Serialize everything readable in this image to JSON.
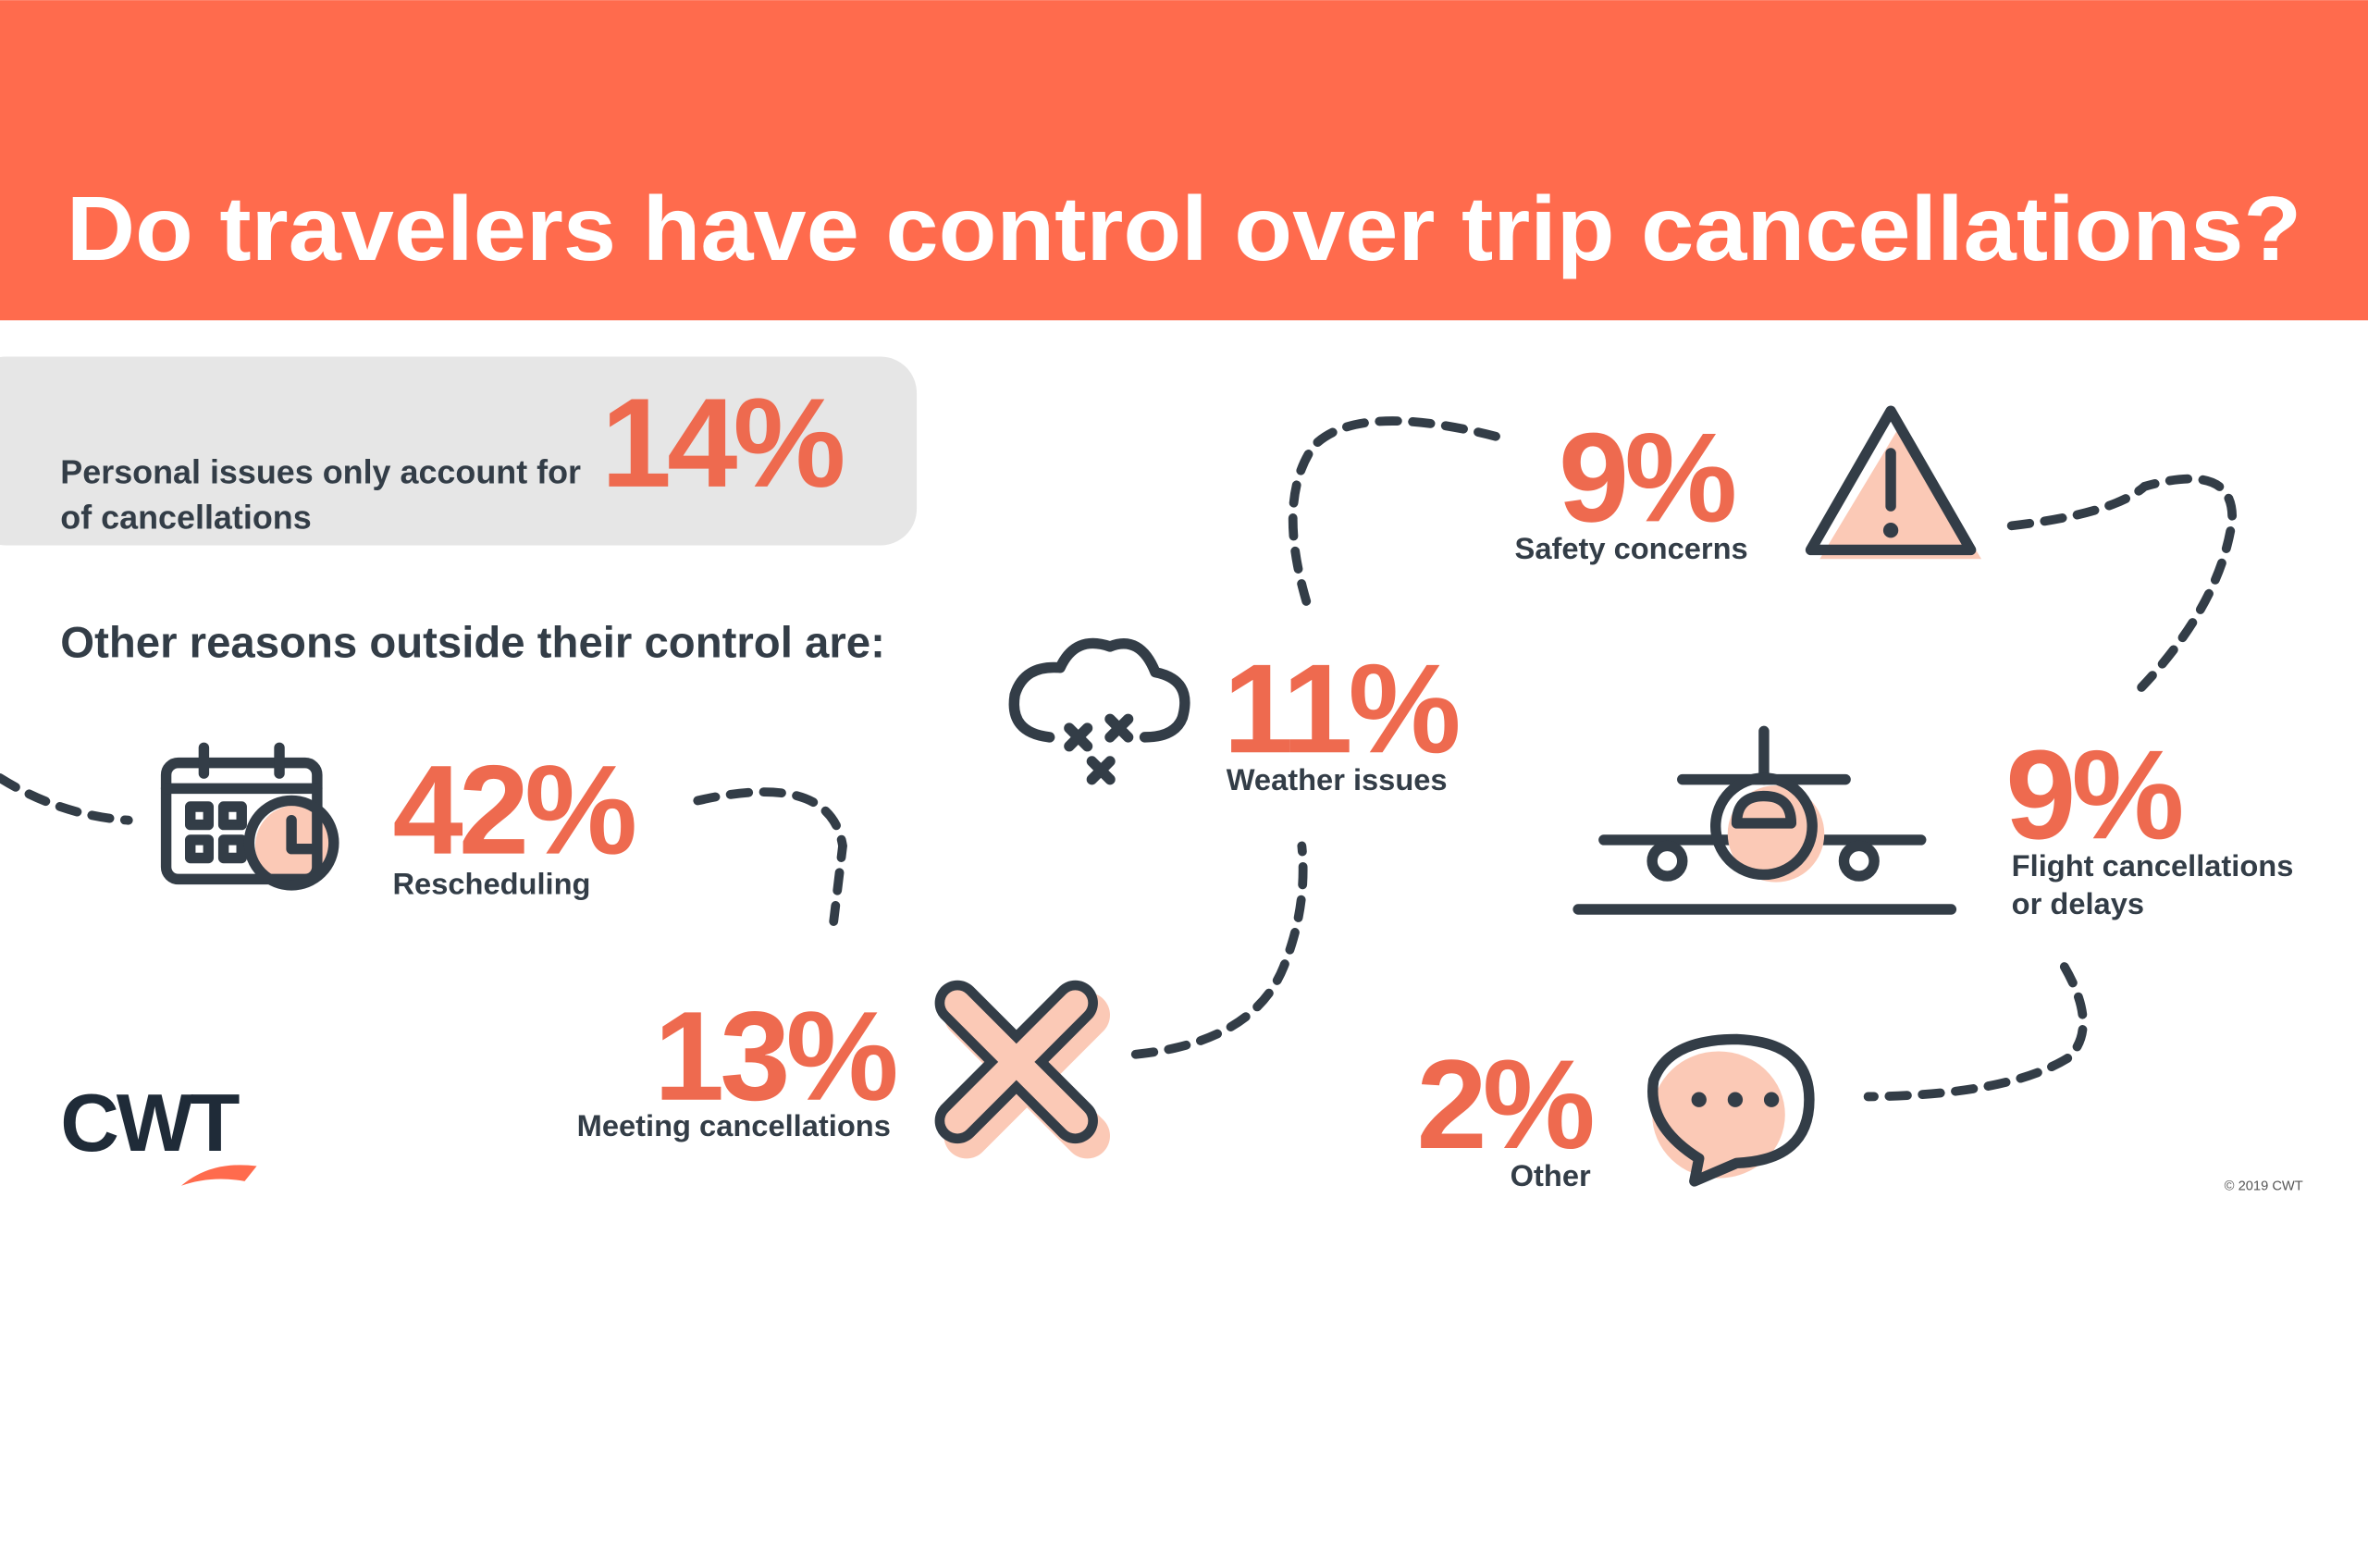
{
  "header": {
    "title": "Do travelers have control over trip cancellations?"
  },
  "intro": {
    "text_before": "Personal issues only account for",
    "value": "14%",
    "text_after": "of cancellations"
  },
  "subheading": "Other reasons outside their control are:",
  "reasons": [
    {
      "value": "42%",
      "label_lines": [
        "Rescheduling"
      ]
    },
    {
      "value": "13%",
      "label_lines": [
        "Meeting cancellations"
      ]
    },
    {
      "value": "11%",
      "label_lines": [
        "Weather issues"
      ]
    },
    {
      "value": "9%",
      "label_lines": [
        "Safety concerns"
      ]
    },
    {
      "value": "9%",
      "label_lines": [
        "Flight cancellations",
        "or delays"
      ]
    },
    {
      "value": "2%",
      "label_lines": [
        "Other"
      ]
    }
  ],
  "logo": "CWT",
  "copyright": "© 2019 CWT"
}
